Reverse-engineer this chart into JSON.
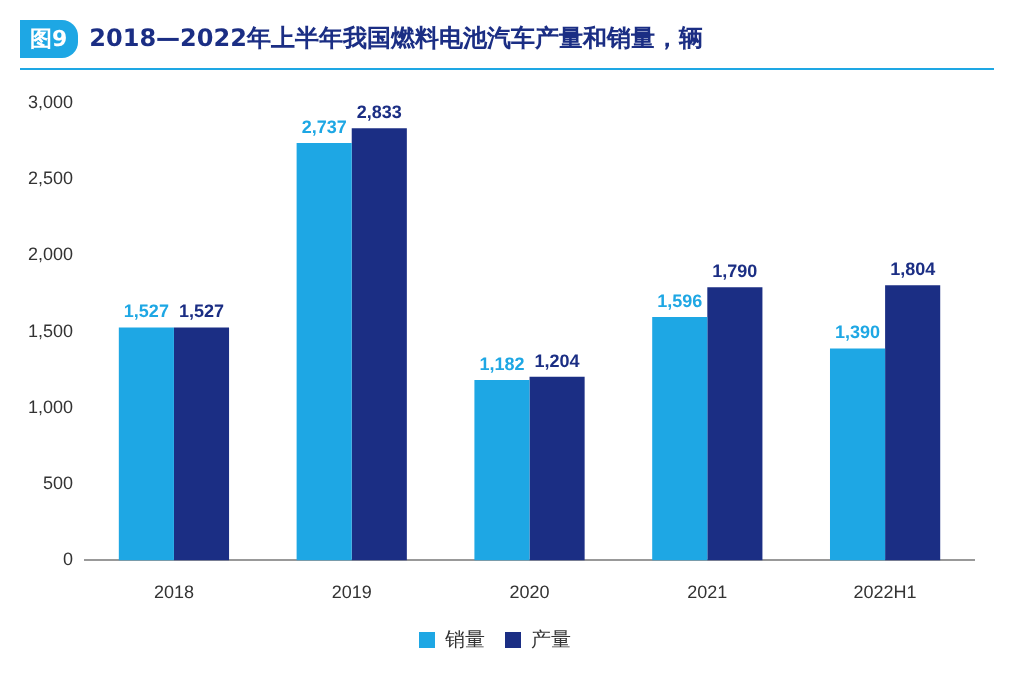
{
  "chart_data": {
    "type": "bar",
    "title": "2018—2022年上半年我国燃料电池汽车产量和销量，辆",
    "annotations": [
      "图9"
    ],
    "categories": [
      "2018",
      "2019",
      "2020",
      "2021",
      "2022H1"
    ],
    "series": [
      {
        "name": "销量",
        "color": "#1ea7e4",
        "values": [
          1527,
          2737,
          1182,
          1596,
          1390
        ],
        "value_labels": [
          "1,527",
          "2,737",
          "1,182",
          "1,596",
          "1,390"
        ]
      },
      {
        "name": "产量",
        "color": "#1b2e84",
        "values": [
          1527,
          2833,
          1204,
          1790,
          1804
        ],
        "value_labels": [
          "1,527",
          "2,833",
          "1,204",
          "1,790",
          "1,804"
        ]
      }
    ],
    "ylim": [
      0,
      3000
    ],
    "yticks": [
      0,
      500,
      {
        "value": 1000,
        "label": "1,000"
      },
      {
        "value": 1500,
        "label": "1,500"
      },
      {
        "value": 2000,
        "label": "2,000"
      },
      {
        "value": 2500,
        "label": "2,500"
      },
      {
        "value": 3000,
        "label": "3,000"
      }
    ],
    "grid": false,
    "legend": "bottom"
  }
}
